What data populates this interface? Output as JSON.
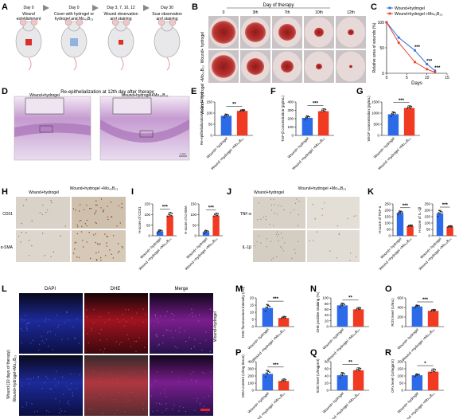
{
  "colors": {
    "blue": "#2f6fd6",
    "red": "#e8432b",
    "bar_blue": "#2d6ae8",
    "bar_red": "#f03a22",
    "he_pink": "#c9a3cf",
    "ihc_bg": "#d9d2c8",
    "fluor_bg": "#0a0a14"
  },
  "panelA": {
    "label": "A",
    "steps": [
      {
        "title": "Day 0",
        "desc": [
          "Wound",
          "establishment"
        ]
      },
      {
        "title": "Day 0",
        "desc": [
          "Cover with hydrogel or",
          "hydrogel and Mo₄₃B₂₃"
        ]
      },
      {
        "title": "Day 3, 7, 10, 12",
        "desc": [
          "Wound observation",
          "and staining"
        ]
      },
      {
        "title": "Day 30",
        "desc": [
          "Scar observation",
          "and staining"
        ]
      }
    ]
  },
  "panelB": {
    "label": "B",
    "title": "Day of therapy",
    "days": [
      "0",
      "3th",
      "7th",
      "10th",
      "12th"
    ],
    "rows": [
      "Wound+ hydrogel",
      "Wound+ hydrogel +Mo₄₃B₂₃"
    ]
  },
  "panelD": {
    "label": "D",
    "title": "Re-epithelialization at 12th day after therapy",
    "left": "Wound+hydrogel",
    "right": "Wound+hydrogel+Mo₄₃B₂₃",
    "scale": "1 mm"
  },
  "panelH": {
    "label": "H",
    "cols": [
      "Wound+hydrogel",
      "Wound+hydrogel +Mo₄₃B₂₃"
    ],
    "rows": [
      "CD31",
      "α-SMA"
    ]
  },
  "panelJ": {
    "label": "J",
    "cols": [
      "Wound+hydrogel",
      "Wound+hydrogel +Mo₄₃B₂₃"
    ],
    "rows": [
      "TNF-α",
      "IL-1β"
    ]
  },
  "panelL": {
    "label": "L",
    "cols": [
      "DAPI",
      "DHE",
      "Merge"
    ],
    "side": "Wound (10 days of therapy)",
    "rows": [
      "Wound+hydrogel",
      "Wound+hydrogel+Mo₄₃B₂₃"
    ]
  },
  "categories": [
    "Wound+ hydrogel",
    "Wound +hydrogel +Mo₄₃B₂₃"
  ],
  "chart_data": [
    {
      "id": "C",
      "type": "line",
      "ylabel": "Relative area of wounds (%)",
      "xlabel": "Days",
      "x": [
        0,
        3,
        7,
        10,
        12
      ],
      "xlim": [
        0,
        15
      ],
      "xticks": [
        0,
        5,
        10,
        15
      ],
      "ylim": [
        0,
        100
      ],
      "yticks": [
        0,
        50,
        100
      ],
      "series": [
        {
          "name": "Wound+hydrogel",
          "color": "#2f6fd6",
          "values": [
            100,
            70,
            45,
            18,
            5
          ]
        },
        {
          "name": "Wound+hydrogel +Mo₄₃B₂₃",
          "color": "#e8432b",
          "values": [
            100,
            60,
            22,
            8,
            2
          ]
        }
      ],
      "annotations": [
        "***",
        "***",
        "***"
      ]
    },
    {
      "id": "E",
      "type": "bar",
      "ylabel": "Re-epithelialization at day 12 (%)",
      "ylim": [
        0,
        150
      ],
      "yticks": [
        0,
        50,
        100,
        150
      ],
      "values": [
        88,
        110
      ],
      "errors": [
        8,
        6
      ],
      "sig": "**"
    },
    {
      "id": "F",
      "type": "bar",
      "ylabel": "TGF-β concentration (pg/mL)",
      "ylim": [
        0,
        400
      ],
      "yticks": [
        0,
        100,
        200,
        300,
        400
      ],
      "values": [
        210,
        290
      ],
      "errors": [
        25,
        30
      ],
      "sig": "***"
    },
    {
      "id": "G",
      "type": "bar",
      "ylabel": "VEGF concentration (pg/mL)",
      "ylim": [
        0,
        1500
      ],
      "yticks": [
        0,
        500,
        1000,
        1500
      ],
      "values": [
        950,
        1230
      ],
      "errors": [
        110,
        100
      ],
      "sig": "***"
    },
    {
      "id": "I1",
      "type": "bar",
      "ylabel": "H-score of CD31",
      "ylim": [
        0,
        150
      ],
      "yticks": [
        0,
        50,
        100,
        150
      ],
      "values": [
        20,
        95
      ],
      "errors": [
        8,
        15
      ],
      "sig": "***"
    },
    {
      "id": "I2",
      "type": "bar",
      "ylabel": "H-score of α-SMA",
      "ylim": [
        0,
        150
      ],
      "yticks": [
        0,
        50,
        100,
        150
      ],
      "values": [
        18,
        95
      ],
      "errors": [
        8,
        12
      ],
      "sig": "***"
    },
    {
      "id": "K1",
      "type": "bar",
      "ylabel": "H-score of TNF-α",
      "ylim": [
        0,
        250
      ],
      "yticks": [
        0,
        50,
        100,
        150,
        200,
        250
      ],
      "values": [
        180,
        75
      ],
      "errors": [
        15,
        10
      ],
      "sig": "***"
    },
    {
      "id": "K2",
      "type": "bar",
      "ylabel": "H-score of IL-1β",
      "ylim": [
        0,
        250
      ],
      "yticks": [
        0,
        50,
        100,
        150,
        200,
        250
      ],
      "values": [
        175,
        70
      ],
      "errors": [
        25,
        10
      ],
      "sig": "***"
    },
    {
      "id": "M",
      "type": "bar",
      "ylabel": "DHE fluorescence intensity (AU)",
      "ylim": [
        0,
        20
      ],
      "yticks": [
        0,
        5,
        10,
        15,
        20
      ],
      "values": [
        13,
        6
      ],
      "errors": [
        2.5,
        1.2
      ],
      "sig": "***"
    },
    {
      "id": "N",
      "type": "bar",
      "ylabel": "DHE positive staining (%)",
      "ylim": [
        0,
        100
      ],
      "yticks": [
        0,
        20,
        40,
        60,
        80,
        100
      ],
      "values": [
        74,
        60
      ],
      "errors": [
        8,
        7
      ],
      "sig": "**"
    },
    {
      "id": "O",
      "type": "bar",
      "ylabel": "ROS level (U/mL)",
      "ylim": [
        0,
        600
      ],
      "yticks": [
        0,
        200,
        400,
        600
      ],
      "values": [
        420,
        330
      ],
      "errors": [
        30,
        30
      ],
      "sig": "***"
    },
    {
      "id": "P",
      "type": "bar",
      "ylabel": "MDA content (U/mg tissue)",
      "ylim": [
        0,
        400
      ],
      "yticks": [
        0,
        100,
        200,
        300,
        400
      ],
      "values": [
        230,
        130
      ],
      "errors": [
        50,
        30
      ],
      "sig": "***"
    },
    {
      "id": "Q",
      "type": "bar",
      "ylabel": "SOD level (U/mgprot)",
      "ylim": [
        0,
        80
      ],
      "yticks": [
        0,
        20,
        40,
        60,
        80
      ],
      "values": [
        42,
        56
      ],
      "errors": [
        8,
        7
      ],
      "sig": "**"
    },
    {
      "id": "R",
      "type": "bar",
      "ylabel": "GPx level (U/mgprot)",
      "ylim": [
        0,
        200
      ],
      "yticks": [
        0,
        50,
        100,
        150,
        200
      ],
      "values": [
        105,
        130
      ],
      "errors": [
        10,
        20
      ],
      "sig": "*"
    }
  ],
  "panel_letters": {
    "C": "C",
    "E": "E",
    "F": "F",
    "G": "G",
    "I": "I",
    "K": "K",
    "M": "M",
    "N": "N",
    "O": "O",
    "P": "P",
    "Q": "Q",
    "R": "R"
  }
}
